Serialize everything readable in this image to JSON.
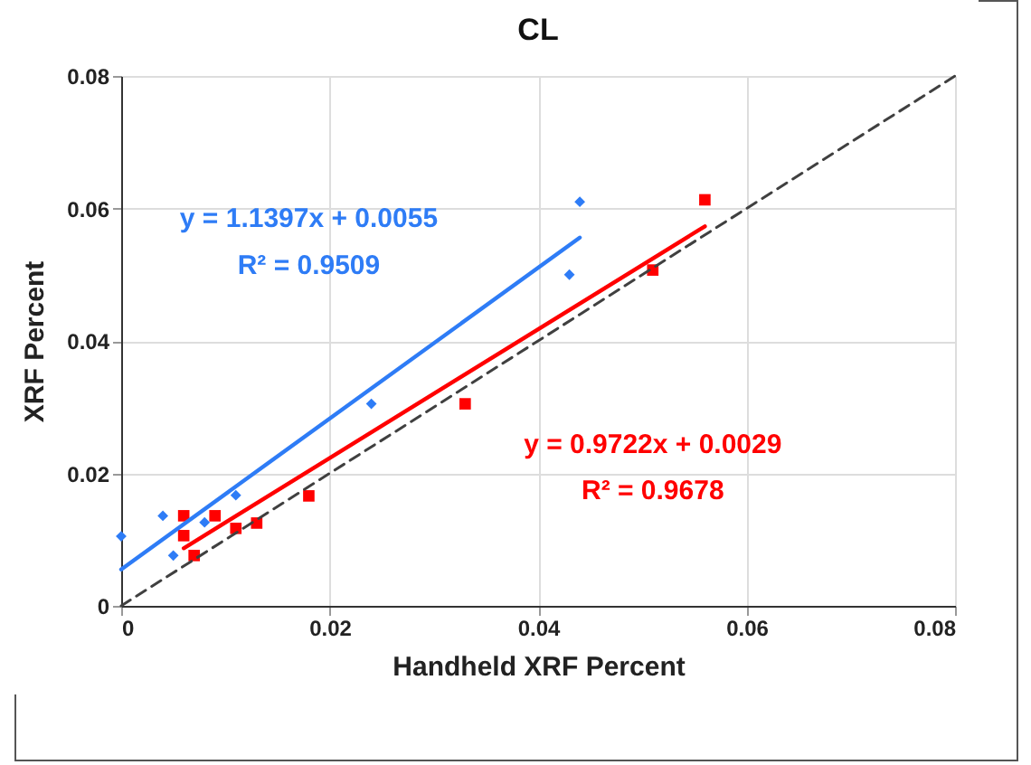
{
  "chart_data": {
    "type": "scatter",
    "title": "CL",
    "xlabel": "Handheld XRF Percent",
    "ylabel": "XRF Percent",
    "xlim": [
      0,
      0.08
    ],
    "xticks": [
      0,
      0.02,
      0.04,
      0.06,
      0.08
    ],
    "ylim": [
      0,
      0.08
    ],
    "yticks": [
      0,
      0.02,
      0.04,
      0.06,
      0.08
    ],
    "grid": true,
    "series": [
      {
        "marker": "diamond",
        "color": "#2e7cf6",
        "x": [
          0,
          0.004,
          0.005,
          0.008,
          0.011,
          0.024,
          0.043,
          0.044
        ],
        "values": [
          0.0105,
          0.0136,
          0.0076,
          0.0126,
          0.0167,
          0.0305,
          0.05,
          0.061
        ]
      },
      {
        "marker": "square",
        "color": "#ff0000",
        "x": [
          0.006,
          0.009,
          0.006,
          0.007,
          0.011,
          0.013,
          0.018,
          0.033,
          0.051,
          0.056
        ],
        "values": [
          0.0136,
          0.0136,
          0.0106,
          0.0076,
          0.0117,
          0.0125,
          0.0166,
          0.0305,
          0.0507,
          0.0613
        ]
      },
      {
        "type": "line",
        "color": "#2e7cf6",
        "x": [
          0,
          0.044
        ],
        "values": [
          0.0055,
          0.0556
        ]
      },
      {
        "type": "line",
        "color": "#ff0000",
        "x": [
          0.006,
          0.056
        ],
        "values": [
          0.0087,
          0.0573
        ]
      },
      {
        "type": "line",
        "color": "#404040",
        "line_style": "dashed",
        "x": [
          0,
          0.08
        ],
        "values": [
          0,
          0.08
        ]
      }
    ],
    "annotations": [
      "y = 1.1397x + 0.0055",
      "R² = 0.9509",
      "y = 0.9722x + 0.0029",
      "R² = 0.9678"
    ]
  }
}
